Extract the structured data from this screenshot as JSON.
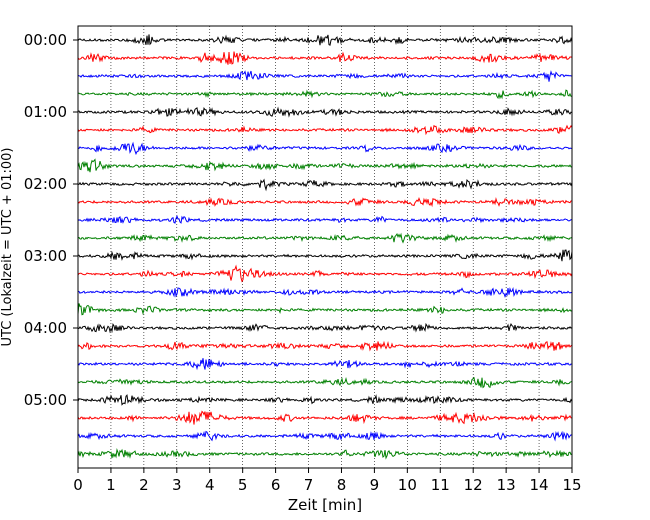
{
  "chart_data": {
    "type": "line",
    "title": "",
    "xlabel": "Zeit  [min]",
    "ylabel": "UTC (Lokalzeit = UTC + 01:00)",
    "x_ticks": [
      "0",
      "1",
      "2",
      "3",
      "4",
      "5",
      "6",
      "7",
      "8",
      "9",
      "10",
      "11",
      "12",
      "13",
      "14",
      "15"
    ],
    "xlim": [
      0,
      15
    ],
    "y_ticks": [
      {
        "label": "00:00",
        "minutes": 0
      },
      {
        "label": "01:00",
        "minutes": 60
      },
      {
        "label": "02:00",
        "minutes": 120
      },
      {
        "label": "03:00",
        "minutes": 180
      },
      {
        "label": "04:00",
        "minutes": 240
      },
      {
        "label": "05:00",
        "minutes": 300
      }
    ],
    "trace_interval_minutes": 15,
    "trace_start_times": [
      "00:00",
      "00:15",
      "00:30",
      "00:45",
      "01:00",
      "01:15",
      "01:30",
      "01:45",
      "02:00",
      "02:15",
      "02:30",
      "02:45",
      "03:00",
      "03:15",
      "03:30",
      "03:45",
      "04:00",
      "04:15",
      "04:30",
      "04:45",
      "05:00",
      "05:15",
      "05:30",
      "05:45"
    ],
    "trace_colors": [
      "#000000",
      "#ff0000",
      "#0000ff",
      "#008000"
    ],
    "grid": {
      "x": true,
      "y": false,
      "style": "dotted"
    }
  }
}
